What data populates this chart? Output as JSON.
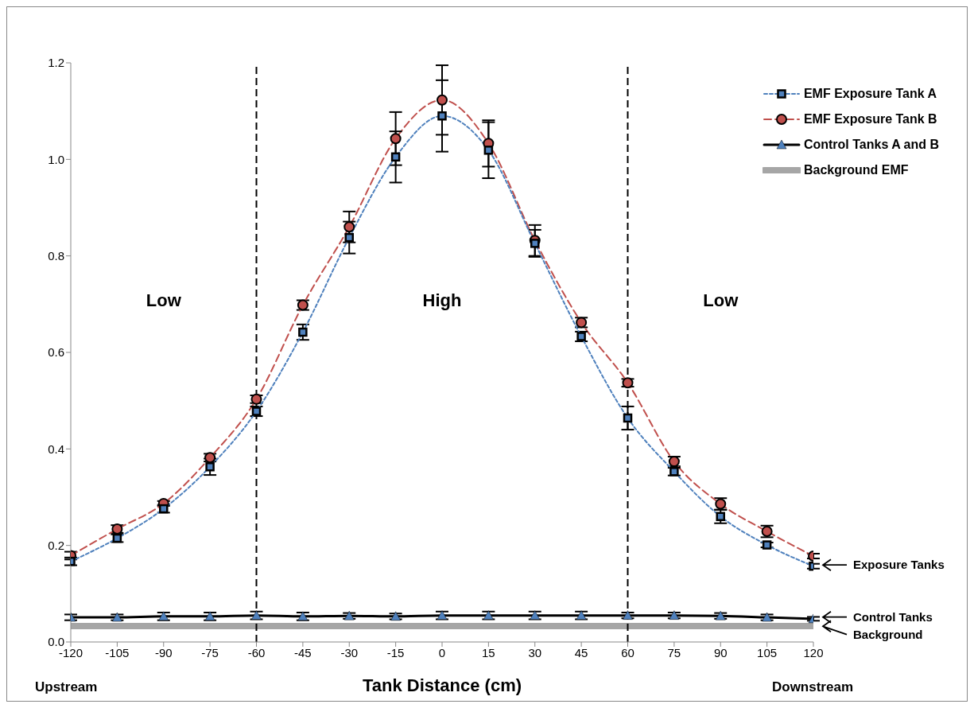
{
  "chart_data": {
    "type": "line",
    "xlabel": "Tank Distance (cm)",
    "x": [
      -120,
      -105,
      -90,
      -75,
      -60,
      -45,
      -30,
      -15,
      0,
      15,
      30,
      45,
      60,
      75,
      90,
      105,
      120
    ],
    "xlim": [
      -120,
      120
    ],
    "xticks": [
      -120,
      -105,
      -90,
      -75,
      -60,
      -45,
      -30,
      -15,
      0,
      15,
      30,
      45,
      60,
      75,
      90,
      105,
      120
    ],
    "ylim": [
      0,
      1.2
    ],
    "yticks": [
      {
        "value": 0,
        "label": "0.0"
      },
      0.2,
      0.4,
      0.6,
      0.8,
      {
        "value": 1,
        "label": "1.0"
      },
      1.2
    ],
    "legend": "top right",
    "series": [
      {
        "name": "EMF Exposure Tank A",
        "color": "#4f81bd",
        "marker": "square",
        "line_style": "dotted",
        "values": [
          0.167,
          0.215,
          0.276,
          0.363,
          0.478,
          0.642,
          0.838,
          1.005,
          1.09,
          1.019,
          0.826,
          0.633,
          0.464,
          0.353,
          0.26,
          0.201,
          0.157
        ],
        "errors": [
          0.008,
          0.008,
          0.008,
          0.017,
          0.01,
          0.016,
          0.033,
          0.053,
          0.074,
          0.058,
          0.028,
          0.01,
          0.024,
          0.008,
          0.014,
          0.005,
          0.005
        ]
      },
      {
        "name": "EMF Exposure Tank B",
        "color": "#c0504d",
        "marker": "circle",
        "line_style": "dashed",
        "values": [
          0.179,
          0.234,
          0.287,
          0.382,
          0.503,
          0.698,
          0.86,
          1.043,
          1.123,
          1.033,
          0.832,
          0.662,
          0.537,
          0.374,
          0.286,
          0.229,
          0.178
        ],
        "errors": [
          0.008,
          0.008,
          0.005,
          0.008,
          0.008,
          0.01,
          0.032,
          0.055,
          0.072,
          0.048,
          0.032,
          0.01,
          0.008,
          0.01,
          0.012,
          0.012,
          0.005
        ]
      },
      {
        "name": "Control Tanks A and B",
        "color": "#000000",
        "marker": "triangle",
        "line_style": "solid",
        "values": [
          0.051,
          0.051,
          0.053,
          0.053,
          0.055,
          0.053,
          0.054,
          0.053,
          0.055,
          0.055,
          0.055,
          0.055,
          0.055,
          0.055,
          0.054,
          0.051,
          0.048
        ],
        "errors": [
          0.006,
          0.006,
          0.008,
          0.008,
          0.008,
          0.008,
          0.006,
          0.006,
          0.008,
          0.008,
          0.008,
          0.008,
          0.006,
          0.006,
          0.006,
          0.006,
          0.004
        ]
      },
      {
        "name": "Background EMF",
        "color": "#a6a6a6",
        "marker": "none",
        "line_style": "solid",
        "values": [
          0.033,
          0.033,
          0.033,
          0.033,
          0.033,
          0.033,
          0.033,
          0.033,
          0.033,
          0.033,
          0.033,
          0.033,
          0.033,
          0.033,
          0.033,
          0.033,
          0.033
        ]
      }
    ],
    "ref_lines": [
      {
        "axis": "x",
        "value": -60,
        "color": "#000000",
        "line_style": "dashed"
      },
      {
        "axis": "x",
        "value": 60,
        "color": "#000000",
        "line_style": "dashed"
      }
    ],
    "annotations": [
      "Low",
      "High",
      "Low",
      "Exposure Tanks",
      "Control Tanks",
      "Background",
      "Upstream",
      "Downstream"
    ]
  }
}
